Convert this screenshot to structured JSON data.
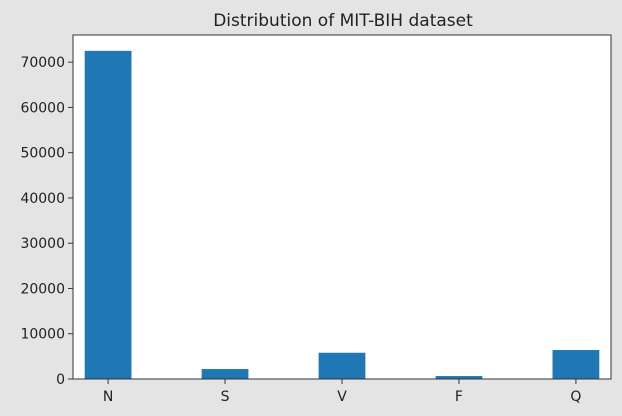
{
  "chart_data": {
    "type": "bar",
    "title": "Distribution of MIT-BIH dataset",
    "xlabel": "",
    "ylabel": "",
    "categories": [
      "N",
      "S",
      "V",
      "F",
      "Q"
    ],
    "x": [
      0,
      1,
      2,
      3,
      4
    ],
    "values": [
      72500,
      2200,
      5800,
      650,
      6400
    ],
    "ylim": [
      0,
      76000
    ],
    "xlim": [
      -0.3,
      4.3
    ],
    "bar_width": 0.4,
    "y_ticks": [
      0,
      10000,
      20000,
      30000,
      40000,
      50000,
      60000,
      70000
    ],
    "y_tick_labels": [
      "0",
      "10000",
      "20000",
      "30000",
      "40000",
      "50000",
      "60000",
      "70000"
    ],
    "grid": false,
    "legend": "none",
    "colors": {
      "bar": "#1f77b4",
      "axes_face": "#ffffff",
      "figure_bg": "#e4e4e4",
      "spine": "#333333",
      "text": "#222222"
    }
  }
}
